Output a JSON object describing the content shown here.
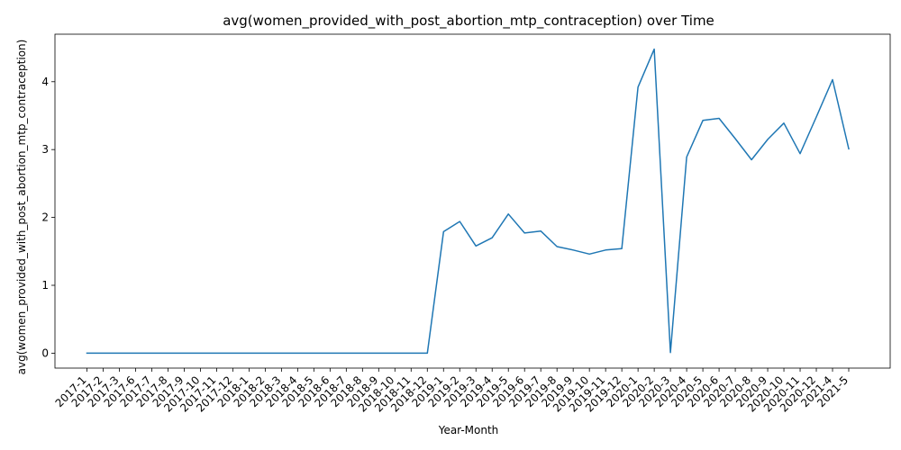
{
  "chart_data": {
    "type": "line",
    "title": "avg(women_provided_with_post_abortion_mtp_contraception) over Time",
    "xlabel": "Year-Month",
    "ylabel": "avg(women_provided_with_post_abortion_mtp_contraception)",
    "categories": [
      "2017-1",
      "2017-2",
      "2017-3",
      "2017-6",
      "2017-7",
      "2017-8",
      "2017-9",
      "2017-10",
      "2017-11",
      "2017-12",
      "2018-1",
      "2018-2",
      "2018-3",
      "2018-4",
      "2018-5",
      "2018-6",
      "2018-7",
      "2018-8",
      "2018-9",
      "2018-10",
      "2018-11",
      "2018-12",
      "2019-1",
      "2019-2",
      "2019-3",
      "2019-4",
      "2019-5",
      "2019-6",
      "2019-7",
      "2019-8",
      "2019-9",
      "2019-10",
      "2019-11",
      "2019-12",
      "2020-1",
      "2020-2",
      "2020-3",
      "2020-4",
      "2020-5",
      "2020-6",
      "2020-7",
      "2020-8",
      "2020-9",
      "2020-10",
      "2020-11",
      "2020-12",
      "2021-4",
      "2021-5"
    ],
    "series": [
      {
        "color": "#1f77b4",
        "values": [
          0,
          0,
          0,
          0,
          0,
          0,
          0,
          0,
          0,
          0,
          0,
          0,
          0,
          0,
          0,
          0,
          0,
          0,
          0,
          0,
          0,
          0,
          1.79,
          1.94,
          1.58,
          1.7,
          2.05,
          1.77,
          1.8,
          1.57,
          1.52,
          1.46,
          1.52,
          1.54,
          3.92,
          4.48,
          0.01,
          2.89,
          3.43,
          3.46,
          3.16,
          2.85,
          3.15,
          3.39,
          2.94,
          3.48,
          4.03,
          3.01
        ]
      }
    ],
    "yticks": [
      0,
      1,
      2,
      3,
      4
    ],
    "ylim": [
      -0.22,
      4.7
    ],
    "grid": false,
    "legend": "none"
  }
}
